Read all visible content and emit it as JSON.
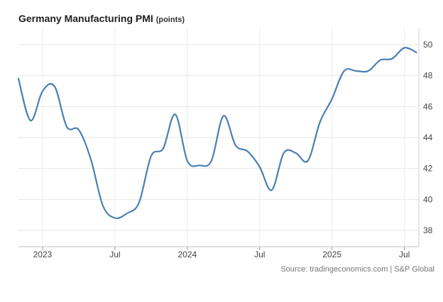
{
  "chart_data": {
    "type": "line",
    "title": "Germany Manufacturing PMI",
    "unit_label": "(points)",
    "source": "Source: tradingeconomics.com | S&P Global",
    "xlabel": "",
    "ylabel": "",
    "ylim": [
      37,
      51
    ],
    "y_ticks": [
      38,
      40,
      42,
      44,
      46,
      48,
      50
    ],
    "x_ticks": [
      {
        "label": "2023",
        "x": 0
      },
      {
        "label": "Jul",
        "x": 6
      },
      {
        "label": "2024",
        "x": 12
      },
      {
        "label": "Jul",
        "x": 18
      },
      {
        "label": "2025",
        "x": 24
      },
      {
        "label": "Jul",
        "x": 30
      }
    ],
    "grid": true,
    "line_color": "#4a7fb5",
    "series": [
      {
        "name": "Germany Manufacturing PMI",
        "x": [
          -2,
          -1,
          0,
          1,
          2,
          3,
          4,
          5,
          6,
          7,
          8,
          9,
          10,
          11,
          12,
          13,
          14,
          15,
          16,
          17,
          18,
          19,
          20,
          21,
          22,
          23,
          24,
          25,
          26,
          27,
          28,
          29,
          30,
          31
        ],
        "values": [
          47.8,
          45.1,
          47.0,
          47.3,
          44.7,
          44.5,
          42.6,
          39.6,
          38.8,
          39.1,
          39.8,
          42.8,
          43.3,
          45.5,
          42.5,
          42.2,
          42.5,
          45.4,
          43.5,
          43.1,
          42.1,
          40.6,
          43.0,
          43.0,
          42.5,
          45.0,
          46.5,
          48.3,
          48.3,
          48.3,
          49.0,
          49.1,
          49.8,
          49.5
        ]
      }
    ]
  }
}
